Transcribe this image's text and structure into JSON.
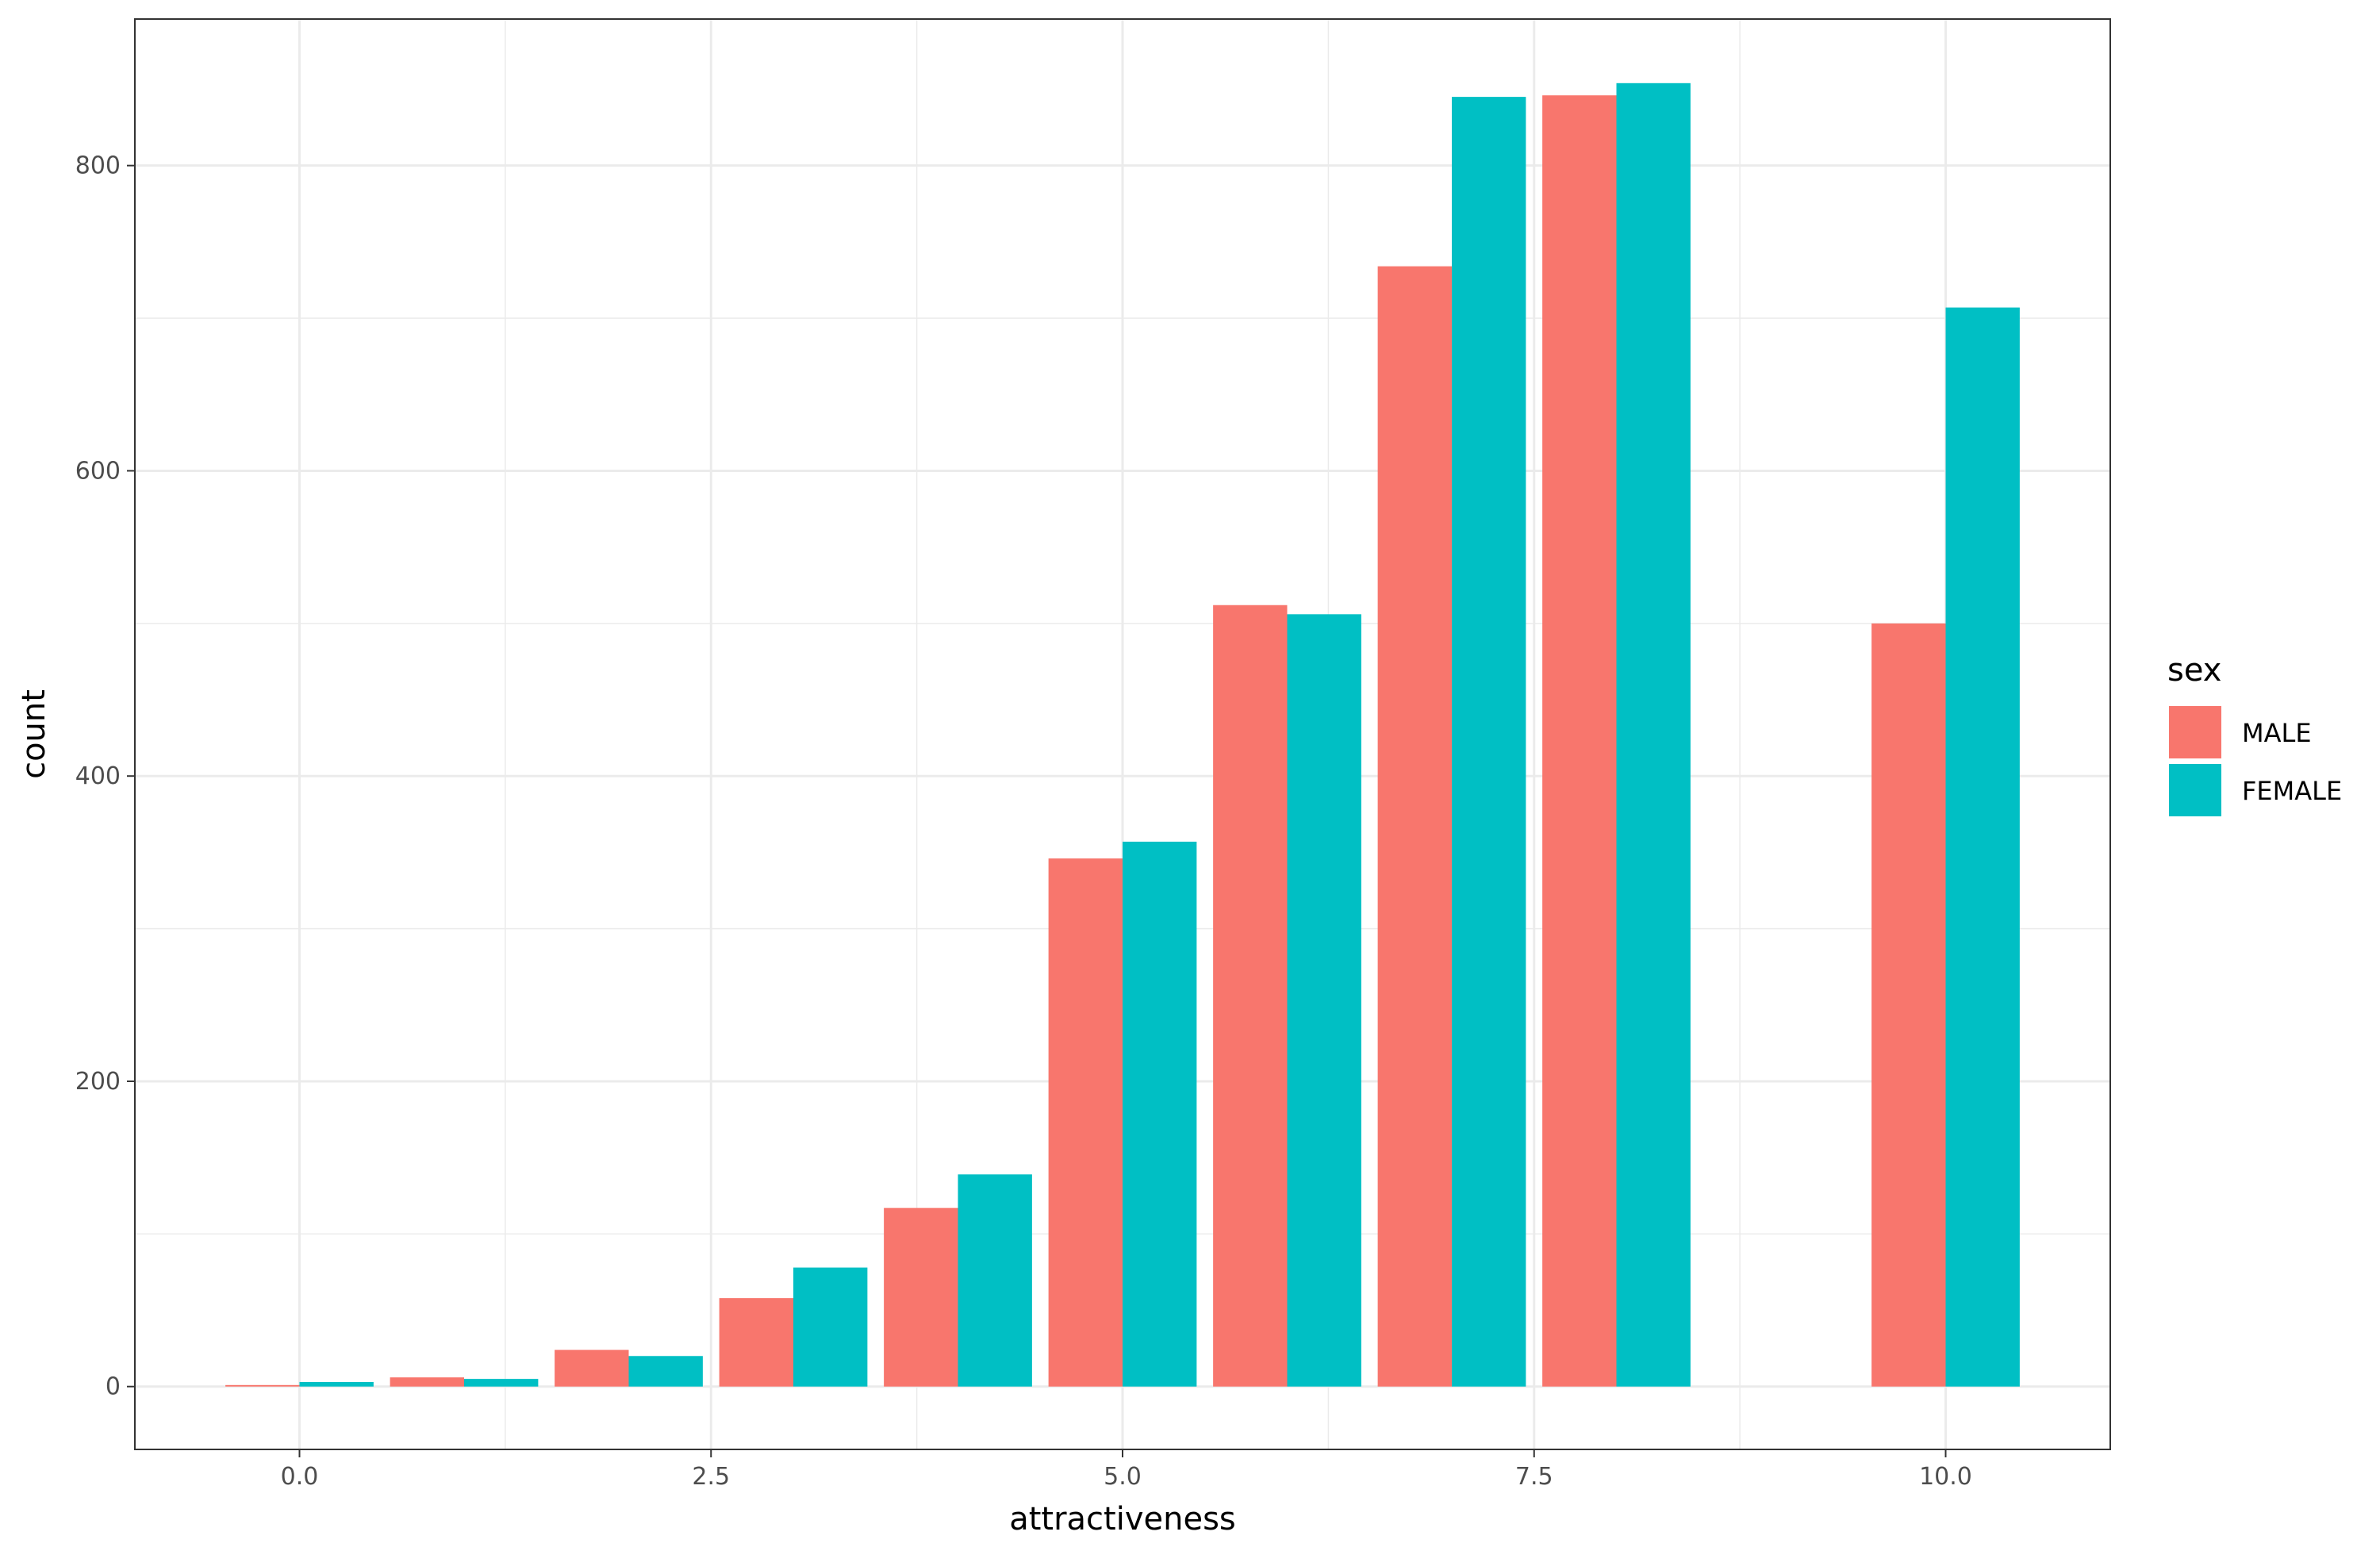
{
  "chart_data": {
    "type": "bar",
    "title": "",
    "xlabel": "attractiveness",
    "ylabel": "count",
    "x": [
      0,
      1,
      2,
      3,
      4,
      5,
      6,
      7,
      8,
      10
    ],
    "series": [
      {
        "name": "MALE",
        "color": "#F8766D",
        "values": [
          1,
          6,
          24,
          58,
          117,
          346,
          512,
          734,
          846,
          500
        ]
      },
      {
        "name": "FEMALE",
        "color": "#00BFC4",
        "values": [
          3,
          5,
          20,
          78,
          139,
          357,
          506,
          845,
          854,
          707
        ]
      }
    ],
    "xlim": [
      -1,
      11
    ],
    "ylim": [
      -41.2,
      896
    ],
    "x_ticks": [
      {
        "value": 0,
        "label": "0.0"
      },
      {
        "value": 2.5,
        "label": "2.5"
      },
      {
        "value": 5,
        "label": "5.0"
      },
      {
        "value": 7.5,
        "label": "7.5"
      },
      {
        "value": 10,
        "label": "10.0"
      }
    ],
    "y_ticks": [
      {
        "value": 0,
        "label": "0"
      },
      {
        "value": 200,
        "label": "200"
      },
      {
        "value": 400,
        "label": "400"
      },
      {
        "value": 600,
        "label": "600"
      },
      {
        "value": 800,
        "label": "800"
      }
    ],
    "grid": true,
    "legend": {
      "title": "sex",
      "position": "right"
    },
    "colors": {
      "male": "#F8766D",
      "female": "#00BFC4",
      "grid": "#EBEBEB",
      "border": "#333333"
    }
  }
}
